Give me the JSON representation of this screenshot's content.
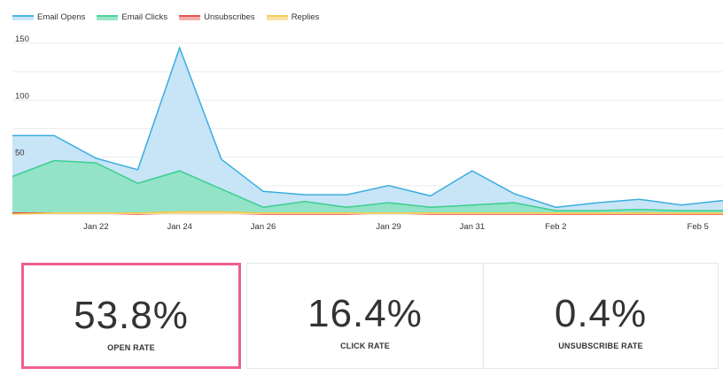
{
  "legend": [
    {
      "label": "Email Opens",
      "color": "#3aaee0"
    },
    {
      "label": "Email Clicks",
      "color": "#3ccf8e"
    },
    {
      "label": "Unsubscribes",
      "color": "#e8413c"
    },
    {
      "label": "Replies",
      "color": "#f2c94c"
    }
  ],
  "chart_data": {
    "type": "area",
    "x_tick_labels": [
      "Jan 22",
      "Jan 24",
      "Jan 26",
      "Jan 29",
      "Jan 31",
      "Feb 2",
      "Feb 5"
    ],
    "y_ticks": [
      50,
      100,
      150
    ],
    "ylim": [
      0,
      160
    ],
    "grid": true,
    "legend_placement": "top-left",
    "series": [
      {
        "name": "Email Opens",
        "color": "#3aaee0",
        "fill": "#c5e3f7",
        "values": [
          69,
          69,
          49,
          39,
          146,
          48,
          20,
          17,
          17,
          25,
          16,
          38,
          18,
          6,
          10,
          13,
          8,
          12
        ]
      },
      {
        "name": "Email Clicks",
        "color": "#3ccf8e",
        "fill": "#8fe3c5",
        "values": [
          33,
          47,
          45,
          27,
          38,
          22,
          6,
          11,
          6,
          10,
          6,
          8,
          10,
          3,
          3,
          4,
          3,
          3
        ]
      },
      {
        "name": "Unsubscribes",
        "color": "#e8413c",
        "fill": "#f4a6a4",
        "values": [
          1,
          1,
          1,
          0,
          1,
          1,
          0,
          0,
          0,
          1,
          0,
          0,
          0,
          0,
          0,
          0,
          0,
          0
        ]
      },
      {
        "name": "Replies",
        "color": "#f2c94c",
        "fill": "#f7df9a",
        "values": [
          0,
          1,
          1,
          1,
          2,
          2,
          1,
          1,
          1,
          1,
          1,
          1,
          1,
          1,
          1,
          1,
          1,
          1
        ]
      }
    ]
  },
  "stats": [
    {
      "value": "53.8%",
      "label": "OPEN RATE"
    },
    {
      "value": "16.4%",
      "label": "CLICK RATE"
    },
    {
      "value": "0.4%",
      "label": "UNSUBSCRIBE RATE"
    }
  ]
}
